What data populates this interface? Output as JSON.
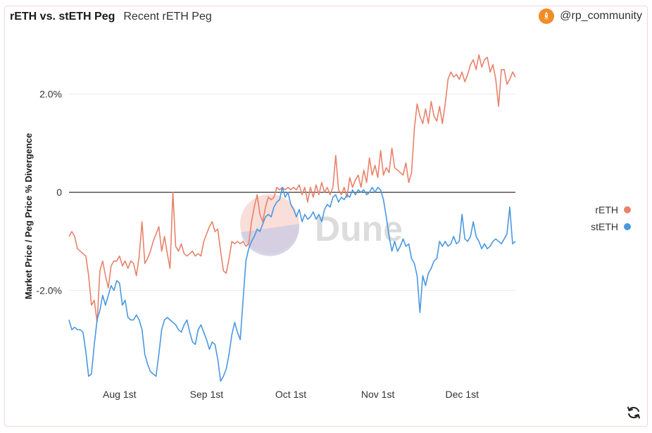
{
  "header": {
    "title": "rETH vs. stETH Peg",
    "subtitle": "Recent rETH Peg",
    "author": "@rp_community",
    "author_icon": "rocket-icon"
  },
  "watermark": "Dune",
  "colors": {
    "reth": "#e8826b",
    "steth": "#4a98e0",
    "zero_line": "#000000",
    "grid": "#ececec"
  },
  "icons": {
    "refresh": "refresh-icon"
  },
  "chart_data": {
    "type": "line",
    "ylabel": "Market Price / Peg Price % Divergence",
    "xlabel": "",
    "ylim": [
      -3.9,
      3.2
    ],
    "yticks": [
      {
        "value": 2,
        "label": "2.0%"
      },
      {
        "value": 0,
        "label": "0"
      },
      {
        "value": -2,
        "label": "-2.0%"
      }
    ],
    "xlim": [
      0,
      159
    ],
    "xticks": [
      {
        "value": 18,
        "label": "Aug 1st"
      },
      {
        "value": 49,
        "label": "Sep 1st"
      },
      {
        "value": 79,
        "label": "Oct 1st"
      },
      {
        "value": 110,
        "label": "Nov 1st"
      },
      {
        "value": 140,
        "label": "Dec 1st"
      }
    ],
    "grid": true,
    "legend_position": "right",
    "series": [
      {
        "name": "rETH",
        "color": "#e8826b",
        "points": [
          [
            0,
            -0.9
          ],
          [
            1,
            -0.8
          ],
          [
            2,
            -0.9
          ],
          [
            3,
            -1.15
          ],
          [
            5,
            -1.25
          ],
          [
            6,
            -1.3
          ],
          [
            7,
            -1.7
          ],
          [
            8,
            -2.3
          ],
          [
            9,
            -2.2
          ],
          [
            10,
            -2.65
          ],
          [
            11,
            -1.6
          ],
          [
            12,
            -1.4
          ],
          [
            13,
            -1.7
          ],
          [
            14,
            -1.95
          ],
          [
            15,
            -1.5
          ],
          [
            16,
            -1.4
          ],
          [
            17,
            -1.4
          ],
          [
            18,
            -1.3
          ],
          [
            19,
            -1.5
          ],
          [
            20,
            -1.4
          ],
          [
            21,
            -1.55
          ],
          [
            22,
            -1.4
          ],
          [
            23,
            -1.45
          ],
          [
            24,
            -1.7
          ],
          [
            25,
            -1.3
          ],
          [
            26,
            -0.6
          ],
          [
            27,
            -1.45
          ],
          [
            28,
            -1.35
          ],
          [
            29,
            -1.2
          ],
          [
            30,
            -1.0
          ],
          [
            31,
            -0.85
          ],
          [
            32,
            -0.7
          ],
          [
            33,
            -1.2
          ],
          [
            34,
            -0.9
          ],
          [
            35,
            -1.25
          ],
          [
            36,
            -1.55
          ],
          [
            37,
            0.0
          ],
          [
            38,
            -1.1
          ],
          [
            39,
            -1.2
          ],
          [
            40,
            -1.05
          ],
          [
            41,
            -1.25
          ],
          [
            42,
            -1.3
          ],
          [
            43,
            -1.25
          ],
          [
            44,
            -1.2
          ],
          [
            45,
            -1.3
          ],
          [
            46,
            -1.25
          ],
          [
            47,
            -1.3
          ],
          [
            48,
            -1.0
          ],
          [
            49,
            -0.85
          ],
          [
            50,
            -0.7
          ],
          [
            51,
            -0.6
          ],
          [
            52,
            -0.8
          ],
          [
            53,
            -0.75
          ],
          [
            54,
            -1.2
          ],
          [
            55,
            -1.6
          ],
          [
            56,
            -1.65
          ],
          [
            57,
            -1.35
          ],
          [
            58,
            -1.0
          ],
          [
            59,
            -1.05
          ],
          [
            60,
            -1.0
          ],
          [
            61,
            -1.05
          ],
          [
            62,
            -1.0
          ],
          [
            63,
            -1.1
          ],
          [
            64,
            -1.05
          ],
          [
            65,
            -0.6
          ],
          [
            66,
            -0.3
          ],
          [
            67,
            -0.05
          ],
          [
            68,
            -0.45
          ],
          [
            69,
            -0.6
          ],
          [
            70,
            -0.3
          ],
          [
            71,
            -0.1
          ],
          [
            72,
            -0.15
          ],
          [
            73,
            -0.1
          ],
          [
            74,
            0.1
          ],
          [
            75,
            0.05
          ],
          [
            76,
            0.1
          ],
          [
            77,
            0.05
          ],
          [
            78,
            0.1
          ],
          [
            79,
            0.05
          ],
          [
            80,
            0.1
          ],
          [
            81,
            0.05
          ],
          [
            82,
            0.15
          ],
          [
            83,
            -0.05
          ],
          [
            84,
            0.1
          ],
          [
            85,
            -0.2
          ],
          [
            86,
            0.1
          ],
          [
            87,
            -0.1
          ],
          [
            88,
            0.15
          ],
          [
            89,
            -0.05
          ],
          [
            90,
            0.2
          ],
          [
            91,
            0.0
          ],
          [
            92,
            0.1
          ],
          [
            93,
            -0.05
          ],
          [
            94,
            0.1
          ],
          [
            95,
            0.75
          ],
          [
            96,
            0.05
          ],
          [
            97,
            -0.05
          ],
          [
            98,
            0.1
          ],
          [
            99,
            -0.1
          ],
          [
            100,
            0.3
          ],
          [
            101,
            0.1
          ],
          [
            102,
            0.25
          ],
          [
            103,
            0.35
          ],
          [
            104,
            0.1
          ],
          [
            105,
            0.45
          ],
          [
            106,
            0.2
          ],
          [
            107,
            0.7
          ],
          [
            108,
            0.35
          ],
          [
            109,
            0.55
          ],
          [
            110,
            0.3
          ],
          [
            111,
            0.85
          ],
          [
            112,
            0.35
          ],
          [
            113,
            0.5
          ],
          [
            114,
            0.4
          ],
          [
            115,
            0.9
          ],
          [
            116,
            0.5
          ],
          [
            117,
            0.45
          ],
          [
            118,
            0.4
          ],
          [
            119,
            0.35
          ],
          [
            120,
            0.6
          ],
          [
            121,
            0.2
          ],
          [
            122,
            0.4
          ],
          [
            123,
            1.3
          ],
          [
            124,
            1.8
          ],
          [
            125,
            1.55
          ],
          [
            126,
            1.4
          ],
          [
            127,
            1.7
          ],
          [
            128,
            1.4
          ],
          [
            129,
            1.85
          ],
          [
            130,
            1.55
          ],
          [
            131,
            1.45
          ],
          [
            132,
            1.75
          ],
          [
            133,
            1.4
          ],
          [
            134,
            1.8
          ],
          [
            135,
            2.3
          ],
          [
            136,
            2.45
          ],
          [
            137,
            2.35
          ],
          [
            138,
            2.4
          ],
          [
            139,
            2.3
          ],
          [
            140,
            2.45
          ],
          [
            141,
            2.25
          ],
          [
            142,
            2.4
          ],
          [
            143,
            2.6
          ],
          [
            144,
            2.7
          ],
          [
            145,
            2.5
          ],
          [
            146,
            2.8
          ],
          [
            147,
            2.55
          ],
          [
            148,
            2.7
          ],
          [
            149,
            2.75
          ],
          [
            150,
            2.45
          ],
          [
            151,
            2.6
          ],
          [
            152,
            2.3
          ],
          [
            153,
            1.75
          ],
          [
            154,
            2.5
          ],
          [
            155,
            2.5
          ],
          [
            156,
            2.2
          ],
          [
            157,
            2.3
          ],
          [
            158,
            2.45
          ],
          [
            159,
            2.35
          ]
        ]
      },
      {
        "name": "stETH",
        "color": "#4a98e0",
        "points": [
          [
            0,
            -2.6
          ],
          [
            1,
            -2.8
          ],
          [
            2,
            -2.75
          ],
          [
            3,
            -2.8
          ],
          [
            4,
            -2.8
          ],
          [
            5,
            -2.85
          ],
          [
            6,
            -3.25
          ],
          [
            7,
            -3.75
          ],
          [
            8,
            -3.7
          ],
          [
            9,
            -3.1
          ],
          [
            10,
            -2.6
          ],
          [
            11,
            -2.4
          ],
          [
            12,
            -2.1
          ],
          [
            13,
            -2.3
          ],
          [
            14,
            -2.1
          ],
          [
            15,
            -1.9
          ],
          [
            16,
            -2.0
          ],
          [
            17,
            -1.8
          ],
          [
            18,
            -1.85
          ],
          [
            19,
            -2.3
          ],
          [
            20,
            -2.2
          ],
          [
            21,
            -2.55
          ],
          [
            22,
            -2.6
          ],
          [
            23,
            -2.6
          ],
          [
            24,
            -2.5
          ],
          [
            25,
            -2.6
          ],
          [
            26,
            -2.8
          ],
          [
            27,
            -3.3
          ],
          [
            28,
            -3.5
          ],
          [
            29,
            -3.65
          ],
          [
            30,
            -3.7
          ],
          [
            31,
            -3.75
          ],
          [
            32,
            -3.3
          ],
          [
            33,
            -2.8
          ],
          [
            34,
            -2.6
          ],
          [
            35,
            -2.55
          ],
          [
            36,
            -2.6
          ],
          [
            37,
            -2.65
          ],
          [
            38,
            -2.7
          ],
          [
            39,
            -2.8
          ],
          [
            40,
            -2.85
          ],
          [
            41,
            -2.7
          ],
          [
            42,
            -2.6
          ],
          [
            43,
            -2.85
          ],
          [
            44,
            -3.05
          ],
          [
            45,
            -3.1
          ],
          [
            46,
            -2.8
          ],
          [
            47,
            -2.7
          ],
          [
            48,
            -2.85
          ],
          [
            49,
            -3.0
          ],
          [
            50,
            -3.2
          ],
          [
            51,
            -3.05
          ],
          [
            52,
            -3.1
          ],
          [
            53,
            -3.4
          ],
          [
            54,
            -3.85
          ],
          [
            55,
            -3.75
          ],
          [
            56,
            -3.6
          ],
          [
            57,
            -3.3
          ],
          [
            58,
            -2.9
          ],
          [
            59,
            -2.65
          ],
          [
            60,
            -2.85
          ],
          [
            61,
            -3.0
          ],
          [
            62,
            -2.2
          ],
          [
            63,
            -1.4
          ],
          [
            64,
            -1.15
          ],
          [
            65,
            -1.0
          ],
          [
            66,
            -0.9
          ],
          [
            67,
            -0.75
          ],
          [
            68,
            -0.8
          ],
          [
            69,
            -0.65
          ],
          [
            70,
            -0.5
          ],
          [
            71,
            -0.45
          ],
          [
            72,
            -0.5
          ],
          [
            73,
            -0.3
          ],
          [
            74,
            -0.2
          ],
          [
            75,
            -0.15
          ],
          [
            76,
            0.1
          ],
          [
            77,
            -0.1
          ],
          [
            78,
            0.0
          ],
          [
            79,
            -0.25
          ],
          [
            80,
            -0.35
          ],
          [
            81,
            -0.5
          ],
          [
            82,
            -0.35
          ],
          [
            83,
            -0.6
          ],
          [
            84,
            -0.45
          ],
          [
            85,
            -0.55
          ],
          [
            86,
            -0.5
          ],
          [
            87,
            -0.4
          ],
          [
            88,
            -0.55
          ],
          [
            89,
            -0.45
          ],
          [
            90,
            -0.6
          ],
          [
            91,
            -0.35
          ],
          [
            92,
            -0.25
          ],
          [
            93,
            -0.3
          ],
          [
            94,
            -0.1
          ],
          [
            95,
            -0.05
          ],
          [
            96,
            -0.2
          ],
          [
            97,
            -0.1
          ],
          [
            98,
            -0.15
          ],
          [
            99,
            -0.05
          ],
          [
            100,
            -0.1
          ],
          [
            101,
            0.05
          ],
          [
            102,
            -0.05
          ],
          [
            103,
            0.05
          ],
          [
            104,
            0.0
          ],
          [
            105,
            0.05
          ],
          [
            106,
            -0.05
          ],
          [
            107,
            0.0
          ],
          [
            108,
            0.1
          ],
          [
            109,
            0.0
          ],
          [
            110,
            0.1
          ],
          [
            111,
            0.05
          ],
          [
            112,
            -0.15
          ],
          [
            113,
            -0.5
          ],
          [
            114,
            -0.9
          ],
          [
            115,
            -1.2
          ],
          [
            116,
            -1.0
          ],
          [
            117,
            -1.2
          ],
          [
            118,
            -1.1
          ],
          [
            119,
            -0.95
          ],
          [
            120,
            -1.1
          ],
          [
            121,
            -1.05
          ],
          [
            122,
            -1.35
          ],
          [
            123,
            -1.45
          ],
          [
            124,
            -1.7
          ],
          [
            125,
            -2.45
          ],
          [
            126,
            -1.7
          ],
          [
            127,
            -1.9
          ],
          [
            128,
            -1.65
          ],
          [
            129,
            -1.55
          ],
          [
            130,
            -1.4
          ],
          [
            131,
            -1.35
          ],
          [
            132,
            -1.0
          ],
          [
            133,
            -1.1
          ],
          [
            134,
            -1.0
          ],
          [
            135,
            -1.1
          ],
          [
            136,
            -1.05
          ],
          [
            137,
            -0.9
          ],
          [
            138,
            -1.05
          ],
          [
            139,
            -1.0
          ],
          [
            140,
            -0.45
          ],
          [
            141,
            -0.95
          ],
          [
            142,
            -1.0
          ],
          [
            143,
            -0.9
          ],
          [
            144,
            -0.6
          ],
          [
            145,
            -0.9
          ],
          [
            146,
            -1.0
          ],
          [
            147,
            -1.15
          ],
          [
            148,
            -1.05
          ],
          [
            149,
            -1.15
          ],
          [
            150,
            -1.1
          ],
          [
            151,
            -1.0
          ],
          [
            152,
            -0.95
          ],
          [
            153,
            -1.0
          ],
          [
            154,
            -1.05
          ],
          [
            155,
            -0.95
          ],
          [
            156,
            -0.85
          ],
          [
            157,
            -0.3
          ],
          [
            158,
            -1.05
          ],
          [
            159,
            -1.0
          ]
        ]
      }
    ]
  }
}
